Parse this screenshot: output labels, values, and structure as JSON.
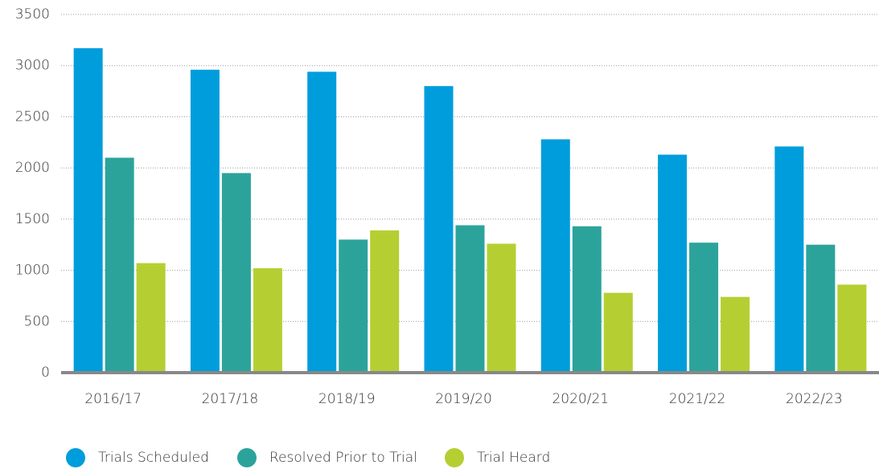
{
  "chart_data": {
    "type": "bar",
    "categories": [
      "2016/17",
      "2017/18",
      "2018/19",
      "2019/20",
      "2020/21",
      "2021/22",
      "2022/23"
    ],
    "series": [
      {
        "name": "Trials Scheduled",
        "color": "#009ddc",
        "values": [
          3170,
          2960,
          2940,
          2800,
          2280,
          2130,
          2210
        ]
      },
      {
        "name": "Resolved Prior to Trial",
        "color": "#2ba39b",
        "values": [
          2100,
          1950,
          1300,
          1440,
          1430,
          1270,
          1250
        ]
      },
      {
        "name": "Trial Heard",
        "color": "#b5cf32",
        "values": [
          1070,
          1020,
          1390,
          1260,
          780,
          740,
          860
        ]
      }
    ],
    "ylim": [
      0,
      3500
    ],
    "yticks": [
      0,
      500,
      1000,
      1500,
      2000,
      2500,
      3000,
      3500
    ],
    "grid": true,
    "legend": "bottom"
  }
}
